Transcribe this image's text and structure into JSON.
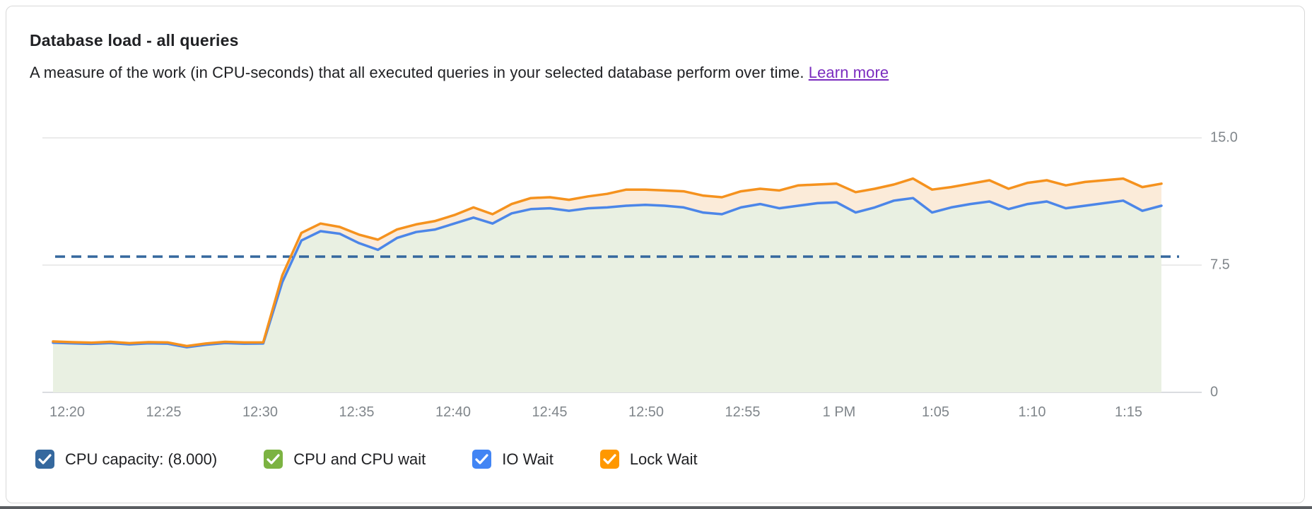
{
  "card": {
    "title": "Database load - all queries",
    "subtitle": "A measure of the work (in CPU-seconds) that all executed queries in your selected database perform over time.",
    "learn_more": "Learn more"
  },
  "colors": {
    "io_wait_line": "#4C86E8",
    "lock_wait_line": "#F5921E",
    "cpu_area_fill": "#E9F0E2",
    "wait_band_fill": "#FBEBD9",
    "capacity_line": "#35689E",
    "gridline": "#EBEBEB",
    "axis_baseline": "#DADCE0",
    "axis_text": "#80868B",
    "link": "#7B2CBF",
    "legend_capacity": "#35689E",
    "legend_cpu_wait": "#7CB342",
    "legend_io_wait": "#4285F4",
    "legend_lock_wait": "#FF9800"
  },
  "legend": {
    "items": [
      {
        "label": "CPU capacity: (8.000)",
        "color_key": "legend_capacity",
        "checked": true
      },
      {
        "label": "CPU and CPU wait",
        "color_key": "legend_cpu_wait",
        "checked": true
      },
      {
        "label": "IO Wait",
        "color_key": "legend_io_wait",
        "checked": true
      },
      {
        "label": "Lock Wait",
        "color_key": "legend_lock_wait",
        "checked": true
      }
    ]
  },
  "chart_data": {
    "type": "area",
    "title": "Database load - all queries",
    "ylabel": "CPU-seconds",
    "ylim": [
      0,
      15
    ],
    "grid": "horizontal-only",
    "legend_position": "bottom",
    "y_ticks": [
      {
        "label": "15.0",
        "value": 15.0
      },
      {
        "label": "7.5",
        "value": 7.5
      },
      {
        "label": "0",
        "value": 0
      }
    ],
    "x_tick_labels": [
      "12:20",
      "12:25",
      "12:30",
      "12:35",
      "12:40",
      "12:45",
      "12:50",
      "12:55",
      "1 PM",
      "1:05",
      "1:10",
      "1:15"
    ],
    "cpu_capacity": 8.0,
    "x": [
      "12:19",
      "12:20",
      "12:21",
      "12:22",
      "12:23",
      "12:24",
      "12:25",
      "12:26",
      "12:27",
      "12:28",
      "12:29",
      "12:30",
      "12:31",
      "12:32",
      "12:33",
      "12:34",
      "12:35",
      "12:36",
      "12:37",
      "12:38",
      "12:39",
      "12:40",
      "12:41",
      "12:42",
      "12:43",
      "12:44",
      "12:45",
      "12:46",
      "12:47",
      "12:48",
      "12:49",
      "12:50",
      "12:51",
      "12:52",
      "12:53",
      "12:54",
      "12:55",
      "12:56",
      "12:57",
      "12:58",
      "12:59",
      "1:00",
      "1:01",
      "1:02",
      "1:03",
      "1:04",
      "1:05",
      "1:06",
      "1:07",
      "1:08",
      "1:09",
      "1:10",
      "1:11",
      "1:12",
      "1:13",
      "1:14",
      "1:15",
      "1:16",
      "1:17"
    ],
    "series": [
      {
        "name": "IO Wait (stacked top of CPU + CPU wait + IO wait)",
        "values": [
          2.93,
          2.89,
          2.86,
          2.91,
          2.83,
          2.89,
          2.87,
          2.66,
          2.81,
          2.91,
          2.87,
          2.88,
          6.5,
          8.95,
          9.5,
          9.35,
          8.8,
          8.4,
          9.1,
          9.45,
          9.6,
          9.95,
          10.3,
          9.95,
          10.55,
          10.8,
          10.85,
          10.7,
          10.85,
          10.9,
          11.0,
          11.05,
          11.0,
          10.9,
          10.6,
          10.5,
          10.9,
          11.1,
          10.85,
          11.0,
          11.15,
          11.2,
          10.6,
          10.9,
          11.3,
          11.45,
          10.6,
          10.9,
          11.1,
          11.25,
          10.8,
          11.1,
          11.25,
          10.85,
          11.0,
          11.15,
          11.3,
          10.7,
          11.0
        ]
      },
      {
        "name": "Lock Wait (stacked top of all waits)",
        "values": [
          3.0,
          2.96,
          2.93,
          2.98,
          2.9,
          2.96,
          2.94,
          2.73,
          2.88,
          2.98,
          2.94,
          2.95,
          6.9,
          9.4,
          9.95,
          9.75,
          9.3,
          9.0,
          9.6,
          9.9,
          10.1,
          10.45,
          10.9,
          10.5,
          11.1,
          11.45,
          11.5,
          11.35,
          11.55,
          11.7,
          11.95,
          11.95,
          11.9,
          11.85,
          11.6,
          11.5,
          11.85,
          12.0,
          11.9,
          12.2,
          12.25,
          12.3,
          11.8,
          12.0,
          12.25,
          12.6,
          11.95,
          12.1,
          12.3,
          12.5,
          12.0,
          12.35,
          12.5,
          12.2,
          12.4,
          12.5,
          12.6,
          12.1,
          12.3
        ]
      }
    ]
  }
}
